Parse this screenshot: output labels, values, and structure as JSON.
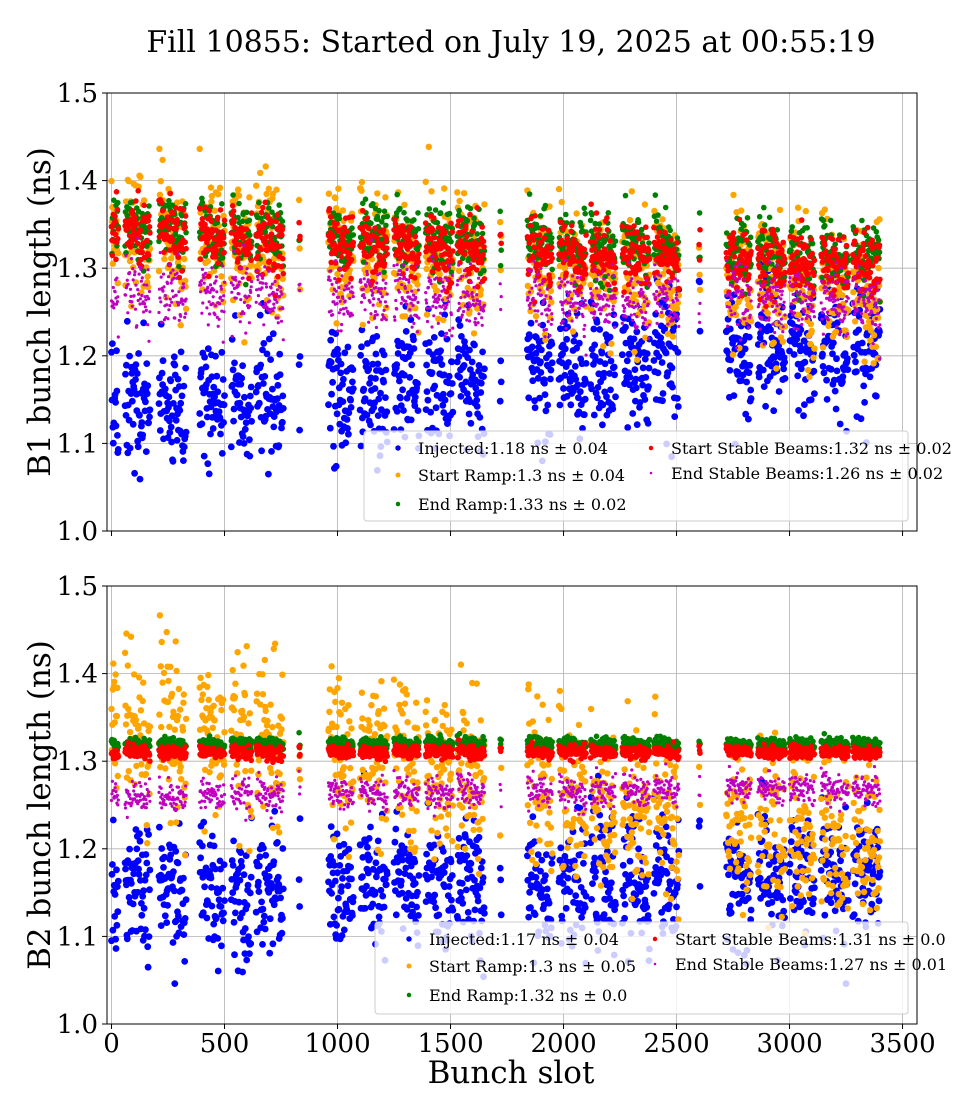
{
  "figure": {
    "title": "Fill 10855: Started on July 19, 2025 at 00:55:19",
    "xlabel": "Bunch slot"
  },
  "chart_data": [
    {
      "type": "scatter",
      "ylabel": "B1 bunch length (ns)",
      "xlim": [
        -20,
        3564
      ],
      "ylim": [
        1.0,
        1.5
      ],
      "xticks": [
        0,
        500,
        1000,
        1500,
        2000,
        2500,
        3000,
        3500
      ],
      "xtick_labels": [],
      "yticks": [
        1.0,
        1.1,
        1.2,
        1.3,
        1.4,
        1.5
      ],
      "ytick_labels": [
        "1.0",
        "1.1",
        "1.2",
        "1.3",
        "1.4",
        "1.5"
      ],
      "grid": true,
      "legend_position": "lower-right",
      "trains": [
        [
          0,
          30
        ],
        [
          60,
          170
        ],
        [
          210,
          330
        ],
        [
          390,
          500
        ],
        [
          530,
          620
        ],
        [
          640,
          760
        ],
        [
          830,
          835
        ],
        [
          960,
          1070
        ],
        [
          1100,
          1220
        ],
        [
          1250,
          1360
        ],
        [
          1390,
          1510
        ],
        [
          1530,
          1650
        ],
        [
          1720,
          1725
        ],
        [
          1840,
          1950
        ],
        [
          1980,
          2100
        ],
        [
          2120,
          2230
        ],
        [
          2260,
          2380
        ],
        [
          2400,
          2510
        ],
        [
          2600,
          2605
        ],
        [
          2720,
          2830
        ],
        [
          2860,
          2980
        ],
        [
          3000,
          3110
        ],
        [
          3140,
          3260
        ],
        [
          3280,
          3400
        ]
      ],
      "series": [
        {
          "name": "Injected",
          "legend": "Injected:1.18 ns ± 0.04",
          "color": "#0000ff",
          "mean": 1.18,
          "std": 0.04,
          "start": 1.14,
          "end": 1.22,
          "radius": 3.4
        },
        {
          "name": "Start Ramp",
          "legend": "Start Ramp:1.3 ns ± 0.04",
          "color": "#ffa500",
          "mean": 1.3,
          "std": 0.04,
          "start": 1.34,
          "end": 1.27,
          "radius": 3.2
        },
        {
          "name": "End Ramp",
          "legend": "End Ramp:1.33 ns ± 0.02",
          "color": "#008000",
          "mean": 1.33,
          "std": 0.02,
          "start": 1.35,
          "end": 1.31,
          "radius": 2.8
        },
        {
          "name": "Start Stable Beams",
          "legend": "Start Stable Beams:1.32 ns ± 0.02",
          "color": "#ff0000",
          "mean": 1.32,
          "std": 0.02,
          "start": 1.34,
          "end": 1.3,
          "radius": 2.8
        },
        {
          "name": "End Stable Beams",
          "legend": "End Stable Beams:1.26 ns ± 0.02",
          "color": "#c000c0",
          "mean": 1.26,
          "std": 0.02,
          "start": 1.27,
          "end": 1.26,
          "radius": 1.6
        }
      ]
    },
    {
      "type": "scatter",
      "ylabel": "B2 bunch length (ns)",
      "xlim": [
        -20,
        3564
      ],
      "ylim": [
        1.0,
        1.5
      ],
      "xticks": [
        0,
        500,
        1000,
        1500,
        2000,
        2500,
        3000,
        3500
      ],
      "xtick_labels": [
        "0",
        "500",
        "1000",
        "1500",
        "2000",
        "2500",
        "3000",
        "3500"
      ],
      "yticks": [
        1.0,
        1.1,
        1.2,
        1.3,
        1.4,
        1.5
      ],
      "ytick_labels": [
        "1.0",
        "1.1",
        "1.2",
        "1.3",
        "1.4",
        "1.5"
      ],
      "grid": true,
      "legend_position": "lower-right",
      "trains": [
        [
          0,
          30
        ],
        [
          60,
          170
        ],
        [
          210,
          330
        ],
        [
          390,
          500
        ],
        [
          530,
          620
        ],
        [
          640,
          760
        ],
        [
          830,
          835
        ],
        [
          960,
          1070
        ],
        [
          1100,
          1220
        ],
        [
          1250,
          1360
        ],
        [
          1390,
          1510
        ],
        [
          1530,
          1650
        ],
        [
          1720,
          1725
        ],
        [
          1840,
          1950
        ],
        [
          1980,
          2100
        ],
        [
          2120,
          2230
        ],
        [
          2260,
          2380
        ],
        [
          2400,
          2510
        ],
        [
          2600,
          2605
        ],
        [
          2720,
          2830
        ],
        [
          2860,
          2980
        ],
        [
          3000,
          3110
        ],
        [
          3140,
          3260
        ],
        [
          3280,
          3400
        ]
      ],
      "series": [
        {
          "name": "Injected",
          "legend": "Injected:1.17 ns ± 0.04",
          "color": "#0000ff",
          "mean": 1.17,
          "std": 0.04,
          "start": 1.15,
          "end": 1.17,
          "radius": 3.4
        },
        {
          "name": "Start Ramp",
          "legend": "Start Ramp:1.3 ns ± 0.05",
          "color": "#ffa500",
          "mean": 1.3,
          "std": 0.05,
          "start": 1.35,
          "end": 1.2,
          "radius": 3.2
        },
        {
          "name": "End Ramp",
          "legend": "End Ramp:1.32 ns ± 0.0",
          "color": "#008000",
          "mean": 1.32,
          "std": 0.0,
          "start": 1.32,
          "end": 1.32,
          "radius": 2.8
        },
        {
          "name": "Start Stable Beams",
          "legend": "Start Stable Beams:1.31 ns ± 0.0",
          "color": "#ff0000",
          "mean": 1.31,
          "std": 0.0,
          "start": 1.31,
          "end": 1.31,
          "radius": 2.8
        },
        {
          "name": "End Stable Beams",
          "legend": "End Stable Beams:1.27 ns ± 0.01",
          "color": "#c000c0",
          "mean": 1.27,
          "std": 0.01,
          "start": 1.26,
          "end": 1.27,
          "radius": 1.6
        }
      ]
    }
  ]
}
